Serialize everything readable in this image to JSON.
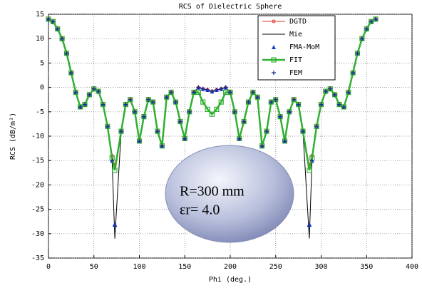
{
  "chart_data": {
    "type": "line",
    "title": "RCS of Dielectric Sphere",
    "x_label": "Phi (deg.)",
    "y_label": "RCS (dB/m²)",
    "xlim": [
      0,
      400
    ],
    "ylim": [
      -35,
      15
    ],
    "xticks": [
      0,
      50,
      100,
      150,
      200,
      250,
      300,
      350,
      400
    ],
    "yticks": [
      15,
      10,
      5,
      0,
      -5,
      -10,
      -15,
      -20,
      -25,
      -30,
      -35
    ],
    "grid": true,
    "legend": "upper right",
    "annotations": [
      "R=300 mm",
      "εr= 4.0"
    ],
    "x": [
      0,
      5,
      10,
      15,
      20,
      25,
      30,
      35,
      40,
      45,
      50,
      55,
      60,
      65,
      70,
      73,
      80,
      85,
      90,
      95,
      100,
      105,
      110,
      115,
      120,
      125,
      130,
      135,
      140,
      145,
      150,
      155,
      160,
      165,
      170,
      175,
      180,
      185,
      190,
      195,
      200,
      205,
      210,
      215,
      220,
      225,
      230,
      235,
      240,
      245,
      250,
      255,
      260,
      265,
      270,
      275,
      280,
      287,
      290,
      295,
      300,
      305,
      310,
      315,
      320,
      325,
      330,
      335,
      340,
      345,
      350,
      355,
      360
    ],
    "series": [
      {
        "name": "DGTD",
        "color": "#e03030",
        "marker": "circle",
        "values": [
          14,
          13.5,
          12,
          10,
          7,
          3,
          -1,
          -4,
          -3.5,
          -1.5,
          -0.3,
          -0.8,
          -3.5,
          -8,
          -14,
          -16,
          -9,
          -3.5,
          -2.5,
          -5,
          -11,
          -6,
          -2.5,
          -3,
          -9,
          -12,
          -2,
          -1,
          -3,
          -7,
          -10.5,
          -5,
          -1,
          0,
          -0.3,
          -0.5,
          -0.8,
          -0.5,
          -0.3,
          0,
          -1,
          -5,
          -10.5,
          -7,
          -3,
          -1,
          -2,
          -12,
          -9,
          -3,
          -2.5,
          -6,
          -11,
          -5,
          -2.5,
          -3.5,
          -9,
          -16,
          -14,
          -8,
          -3.5,
          -0.8,
          -0.3,
          -1.5,
          -3.5,
          -4,
          -1,
          3,
          7,
          10,
          12,
          13.5,
          14
        ]
      },
      {
        "name": "Mie",
        "color": "#000000",
        "marker": "none",
        "values": [
          14,
          13.5,
          12,
          10,
          7,
          3,
          -1,
          -4,
          -3.5,
          -1.5,
          -0.3,
          -0.8,
          -3.5,
          -8,
          -15,
          -31,
          -9,
          -3.5,
          -2.5,
          -5,
          -11,
          -6,
          -2.5,
          -3,
          -9,
          -12,
          -2,
          -1,
          -3,
          -7,
          -10.5,
          -5,
          -1,
          0,
          -0.3,
          -0.5,
          -0.8,
          -0.5,
          -0.3,
          0,
          -1,
          -5,
          -10.5,
          -7,
          -3,
          -1,
          -2,
          -12,
          -9,
          -3,
          -2.5,
          -6,
          -11,
          -5,
          -2.5,
          -3.5,
          -9,
          -31,
          -15,
          -8,
          -3.5,
          -0.8,
          -0.3,
          -1.5,
          -3.5,
          -4,
          -1,
          3,
          7,
          10,
          12,
          13.5,
          14
        ]
      },
      {
        "name": "FMA-MoM",
        "color": "#2040c0",
        "marker": "triangle",
        "values": [
          14,
          13.5,
          12,
          10,
          7,
          3,
          -1,
          -4,
          -3.5,
          -1.5,
          -0.3,
          -0.8,
          -3.5,
          -8,
          -15,
          -28,
          -9,
          -3.5,
          -2.5,
          -5,
          -11,
          -6,
          -2.5,
          -3,
          -9,
          -12,
          -2,
          -1,
          -3,
          -7,
          -10.5,
          -5,
          -1,
          0,
          -0.3,
          -0.5,
          -0.8,
          -0.5,
          -0.3,
          0,
          -1,
          -5,
          -10.5,
          -7,
          -3,
          -1,
          -2,
          -12,
          -9,
          -3,
          -2.5,
          -6,
          -11,
          -5,
          -2.5,
          -3.5,
          -9,
          -28,
          -15,
          -8,
          -3.5,
          -0.8,
          -0.3,
          -1.5,
          -3.5,
          -4,
          -1,
          3,
          7,
          10,
          12,
          13.5,
          14
        ]
      },
      {
        "name": "FIT",
        "color": "#30b030",
        "marker": "square",
        "values": [
          14,
          13.5,
          12,
          10,
          7,
          3,
          -1,
          -4,
          -3.5,
          -1.5,
          -0.3,
          -0.8,
          -3.5,
          -8,
          -14.5,
          -17,
          -9,
          -3.5,
          -2.5,
          -5,
          -11,
          -6,
          -2.5,
          -3,
          -9,
          -12,
          -2,
          -1,
          -3,
          -7,
          -10.5,
          -5,
          -1,
          -1,
          -3,
          -4.5,
          -5.5,
          -4.5,
          -3,
          -1,
          -1,
          -5,
          -10.5,
          -7,
          -3,
          -1,
          -2,
          -12,
          -9,
          -3,
          -2.5,
          -6,
          -11,
          -5,
          -2.5,
          -3.5,
          -9,
          -17,
          -14.5,
          -8,
          -3.5,
          -0.8,
          -0.3,
          -1.5,
          -3.5,
          -4,
          -1,
          3,
          7,
          10,
          12,
          13.5,
          14
        ]
      },
      {
        "name": "FEM",
        "color": "#1a2a9a",
        "marker": "plus",
        "values": [
          14,
          13.5,
          12,
          10,
          7,
          3,
          -1,
          -4,
          -3.5,
          -1.5,
          -0.3,
          -0.8,
          -3.5,
          -8,
          -15,
          -28.5,
          -9,
          -3.5,
          -2.5,
          -5,
          -11,
          -6,
          -2.5,
          -3,
          -9,
          -12,
          -2,
          -1,
          -3,
          -7,
          -10.5,
          -5,
          -1,
          0,
          -0.3,
          -0.5,
          -0.8,
          -0.5,
          -0.3,
          0,
          -1,
          -5,
          -10.5,
          -7,
          -3,
          -1,
          -2,
          -12,
          -9,
          -3,
          -2.5,
          -6,
          -11,
          -5,
          -2.5,
          -3.5,
          -9,
          -28.5,
          -15,
          -8,
          -3.5,
          -0.8,
          -0.3,
          -1.5,
          -3.5,
          -4,
          -1,
          3,
          7,
          10,
          12,
          13.5,
          14
        ]
      }
    ]
  }
}
